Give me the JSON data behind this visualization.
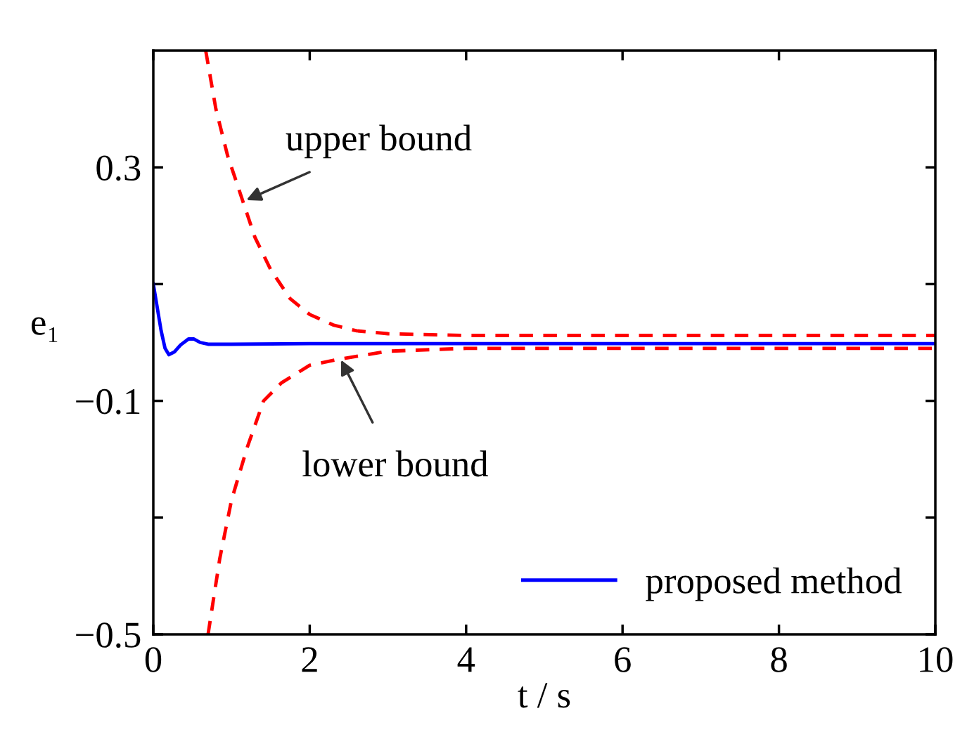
{
  "chart_data": {
    "type": "line",
    "xlabel": "t / s",
    "ylabel": "e₁",
    "xlim": [
      0,
      10
    ],
    "ylim": [
      -0.5,
      0.5
    ],
    "xticks": [
      0,
      2,
      4,
      6,
      8,
      10
    ],
    "yticks": [
      {
        "value": -0.5,
        "label": "−0.5"
      },
      {
        "value": -0.3,
        "label": null
      },
      {
        "value": -0.1,
        "label": "−0.1"
      },
      {
        "value": 0.1,
        "label": null
      },
      {
        "value": 0.3,
        "label": "0.3"
      }
    ],
    "grid": false,
    "legend": "bottom right",
    "series": [
      {
        "name": "proposed method",
        "color": "#0000ff",
        "line_style": "solid",
        "x": [
          0,
          0.05,
          0.1,
          0.15,
          0.2,
          0.27,
          0.35,
          0.45,
          0.52,
          0.6,
          0.7,
          1,
          2,
          4,
          10
        ],
        "values": [
          0.1,
          0.06,
          0.02,
          -0.01,
          -0.021,
          -0.016,
          -0.004,
          0.006,
          0.006,
          0.0,
          -0.003,
          -0.003,
          -0.002,
          -0.002,
          -0.002
        ]
      },
      {
        "color": "#ff0000",
        "line_style": "dashed",
        "x": [
          0.67,
          0.8,
          0.95,
          1.1,
          1.3,
          1.5,
          1.75,
          2.0,
          2.3,
          2.6,
          3,
          4,
          10
        ],
        "values": [
          0.5,
          0.4,
          0.32,
          0.26,
          0.18,
          0.125,
          0.075,
          0.048,
          0.03,
          0.02,
          0.015,
          0.012,
          0.012
        ]
      },
      {
        "color": "#ff0000",
        "line_style": "dashed",
        "x": [
          0.7,
          0.85,
          1.0,
          1.2,
          1.41,
          1.64,
          2.0,
          2.36,
          3,
          4,
          10
        ],
        "values": [
          -0.5,
          -0.37,
          -0.27,
          -0.18,
          -0.1,
          -0.069,
          -0.039,
          -0.029,
          -0.015,
          -0.01,
          -0.01
        ]
      }
    ],
    "annotations": [
      {
        "text": "upper bound",
        "x": 1.19,
        "y": 0.244
      },
      {
        "text": "lower bound",
        "x": 2.4,
        "y": -0.03
      }
    ]
  }
}
